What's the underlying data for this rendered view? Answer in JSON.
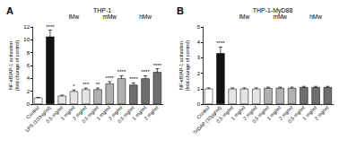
{
  "chart_data": [
    {
      "type": "bar",
      "title": "A",
      "subtitle": "THP-1",
      "y_label": "NF-κB/AP-1 activation\n(fold change of control)",
      "categories": [
        "Control",
        "LPS (100ng/ml)",
        "0.5 mg/ml",
        "1 mg/ml",
        "2 mg/ml",
        "0.5 mg/ml",
        "1 mg/ml",
        "2 mg/ml",
        "0.5 mg/ml",
        "1 mg/ml",
        "2 mg/ml"
      ],
      "values": [
        1.0,
        10.5,
        1.3,
        2.0,
        2.3,
        2.3,
        3.2,
        4.0,
        3.0,
        4.0,
        5.0
      ],
      "errors": [
        0.05,
        1.0,
        0.1,
        0.2,
        0.2,
        0.2,
        0.3,
        0.4,
        0.3,
        0.4,
        0.5
      ],
      "significance": [
        null,
        "****",
        null,
        "*",
        "***",
        "**",
        "****",
        "****",
        "****",
        "****",
        "****"
      ],
      "colors": [
        "#ffffff",
        "#111111",
        "#e4e4e4",
        "#e4e4e4",
        "#e4e4e4",
        "#b0b0b0",
        "#b0b0b0",
        "#b0b0b0",
        "#6e6e6e",
        "#6e6e6e",
        "#6e6e6e"
      ],
      "groups": [
        {
          "label": "lMw",
          "first": 2,
          "last": 4
        },
        {
          "label": "mMw",
          "first": 5,
          "last": 7
        },
        {
          "label": "hMw",
          "first": 8,
          "last": 10
        }
      ],
      "ylim": [
        0,
        12
      ],
      "yticks": [
        0,
        2,
        4,
        6,
        8,
        10,
        12
      ],
      "grid": false
    },
    {
      "type": "bar",
      "title": "B",
      "subtitle": "THP-1-MyD88",
      "y_label": "NF-κB/AP-1 activation\n(fold change of control)",
      "categories": [
        "Control",
        "TriDAP (10µg/ml)",
        "0.5 mg/ml",
        "1 mg/ml",
        "2 mg/ml",
        "0.5 mg/ml",
        "1 mg/ml",
        "2 mg/ml",
        "0.5 mg/ml",
        "1 mg/ml",
        "2 mg/ml"
      ],
      "values": [
        1.0,
        3.3,
        1.0,
        1.0,
        1.0,
        1.05,
        1.05,
        1.05,
        1.1,
        1.1,
        1.1
      ],
      "errors": [
        0.05,
        0.4,
        0.05,
        0.05,
        0.05,
        0.05,
        0.05,
        0.05,
        0.05,
        0.05,
        0.05
      ],
      "significance": [
        null,
        "****",
        null,
        null,
        null,
        null,
        null,
        null,
        null,
        null,
        null
      ],
      "colors": [
        "#ffffff",
        "#111111",
        "#e4e4e4",
        "#e4e4e4",
        "#e4e4e4",
        "#b0b0b0",
        "#b0b0b0",
        "#b0b0b0",
        "#6e6e6e",
        "#6e6e6e",
        "#6e6e6e"
      ],
      "groups": [
        {
          "label": "lMw",
          "first": 2,
          "last": 4
        },
        {
          "label": "mMw",
          "first": 5,
          "last": 7
        },
        {
          "label": "hMw",
          "first": 8,
          "last": 10
        }
      ],
      "ylim": [
        0,
        5
      ],
      "yticks": [
        0,
        1,
        2,
        3,
        4,
        5
      ],
      "grid": false
    }
  ]
}
